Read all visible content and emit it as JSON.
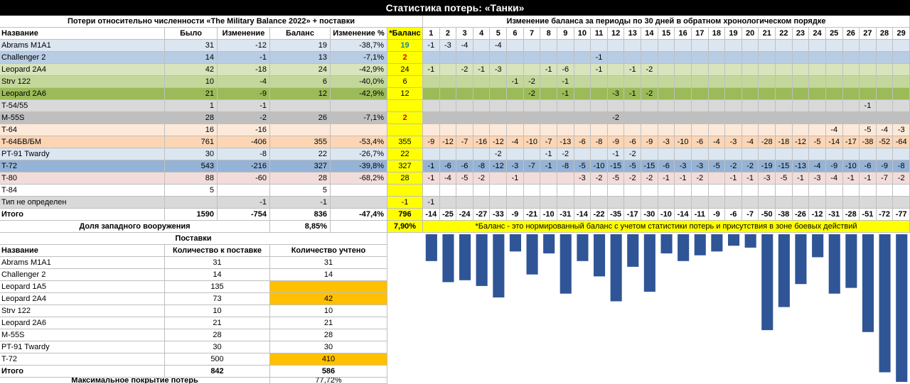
{
  "title": "Статистика потерь: «Танки»",
  "left_header": "Потери относительно численности «The Military Balance 2022» + поставки",
  "right_header": "Изменение баланса за периоды по 30 дней в обратном хронологическом порядке",
  "columns": [
    "Название",
    "Было",
    "Изменение",
    "Баланс",
    "Изменение %",
    "*Баланс"
  ],
  "periods": [
    "1",
    "2",
    "3",
    "4",
    "5",
    "6",
    "7",
    "8",
    "9",
    "10",
    "11",
    "12",
    "13",
    "14",
    "15",
    "16",
    "17",
    "18",
    "19",
    "20",
    "21",
    "22",
    "23",
    "24",
    "25",
    "26",
    "27",
    "28",
    "29"
  ],
  "colors": {
    "yellow": "#ffff00",
    "orange": "#ffc000",
    "bar": "#2f5597"
  },
  "rows": [
    {
      "name": "Abrams M1A1",
      "was": "31",
      "change": "-12",
      "balance": "19",
      "pct": "-38,7%",
      "nbal": "19",
      "nbal_style": "teal",
      "bg": "#dce6f1",
      "d": [
        "-1",
        "-3",
        "-4",
        "",
        "-4",
        "",
        "",
        "",
        "",
        "",
        "",
        "",
        "",
        "",
        "",
        "",
        "",
        "",
        "",
        "",
        "",
        "",
        "",
        "",
        "",
        "",
        "",
        "",
        ""
      ]
    },
    {
      "name": "Challenger 2",
      "was": "14",
      "change": "-1",
      "balance": "13",
      "pct": "-7,1%",
      "nbal": "2",
      "nbal_style": "red",
      "bg": "#b8cce4",
      "d": [
        "",
        "",
        "",
        "",
        "",
        "",
        "",
        "",
        "",
        "",
        "-1",
        "",
        "",
        "",
        "",
        "",
        "",
        "",
        "",
        "",
        "",
        "",
        "",
        "",
        "",
        "",
        "",
        "",
        ""
      ]
    },
    {
      "name": "Leopard 2A4",
      "was": "42",
      "change": "-18",
      "balance": "24",
      "pct": "-42,9%",
      "nbal": "24",
      "nbal_style": "",
      "bg": "#d8e4bc",
      "d": [
        "-1",
        "",
        "-2",
        "-1",
        "-3",
        "",
        "",
        "-1",
        "-6",
        "",
        "-1",
        "",
        "-1",
        "-2",
        "",
        "",
        "",
        "",
        "",
        "",
        "",
        "",
        "",
        "",
        "",
        "",
        "",
        "",
        ""
      ]
    },
    {
      "name": "Strv 122",
      "was": "10",
      "change": "-4",
      "balance": "6",
      "pct": "-40,0%",
      "nbal": "6",
      "nbal_style": "",
      "bg": "#c4d79b",
      "d": [
        "",
        "",
        "",
        "",
        "",
        "-1",
        "-2",
        "",
        "-1",
        "",
        "",
        "",
        "",
        "",
        "",
        "",
        "",
        "",
        "",
        "",
        "",
        "",
        "",
        "",
        "",
        "",
        "",
        "",
        ""
      ]
    },
    {
      "name": "Leopard 2A6",
      "was": "21",
      "change": "-9",
      "balance": "12",
      "pct": "-42,9%",
      "nbal": "12",
      "nbal_style": "",
      "bg": "#9bbb59",
      "d": [
        "",
        "",
        "",
        "",
        "",
        "",
        "-2",
        "",
        "-1",
        "",
        "",
        "-3",
        "-1",
        "-2",
        "",
        "",
        "",
        "",
        "",
        "",
        "",
        "",
        "",
        "",
        "",
        "",
        "",
        "",
        ""
      ]
    },
    {
      "name": "T-54/55",
      "was": "1",
      "change": "-1",
      "balance": "",
      "pct": "",
      "nbal": "",
      "nbal_style": "",
      "bg": "#d9d9d9",
      "d": [
        "",
        "",
        "",
        "",
        "",
        "",
        "",
        "",
        "",
        "",
        "",
        "",
        "",
        "",
        "",
        "",
        "",
        "",
        "",
        "",
        "",
        "",
        "",
        "",
        "",
        "",
        "-1",
        "",
        ""
      ]
    },
    {
      "name": "M-55S",
      "was": "28",
      "change": "-2",
      "balance": "26",
      "pct": "-7,1%",
      "nbal": "2",
      "nbal_style": "red",
      "bg": "#bfbfbf",
      "d": [
        "",
        "",
        "",
        "",
        "",
        "",
        "",
        "",
        "",
        "",
        "",
        "-2",
        "",
        "",
        "",
        "",
        "",
        "",
        "",
        "",
        "",
        "",
        "",
        "",
        "",
        "",
        "",
        "",
        ""
      ]
    },
    {
      "name": "T-64",
      "was": "16",
      "change": "-16",
      "balance": "",
      "pct": "",
      "nbal": "",
      "nbal_style": "",
      "bg": "#fde9d9",
      "d": [
        "",
        "",
        "",
        "",
        "",
        "",
        "",
        "",
        "",
        "",
        "",
        "",
        "",
        "",
        "",
        "",
        "",
        "",
        "",
        "",
        "",
        "",
        "",
        "",
        "-4",
        "",
        "-5",
        "-4",
        "-3"
      ]
    },
    {
      "name": "T-64БВ/БМ",
      "was": "761",
      "change": "-406",
      "balance": "355",
      "pct": "-53,4%",
      "nbal": "355",
      "nbal_style": "",
      "bg": "#fcd5b4",
      "d": [
        "-9",
        "-12",
        "-7",
        "-16",
        "-12",
        "-4",
        "-10",
        "-7",
        "-13",
        "-6",
        "-8",
        "-9",
        "-6",
        "-9",
        "-3",
        "-10",
        "-6",
        "-4",
        "-3",
        "-4",
        "-28",
        "-18",
        "-12",
        "-5",
        "-14",
        "-17",
        "-38",
        "-52",
        "-64"
      ]
    },
    {
      "name": "PT-91 Twardy",
      "was": "30",
      "change": "-8",
      "balance": "22",
      "pct": "-26,7%",
      "nbal": "22",
      "nbal_style": "",
      "bg": "#dce6f1",
      "d": [
        "",
        "",
        "",
        "",
        "-2",
        "",
        "",
        "-1",
        "-2",
        "",
        "",
        "-1",
        "-2",
        "",
        "",
        "",
        "",
        "",
        "",
        "",
        "",
        "",
        "",
        "",
        "",
        "",
        "",
        "",
        ""
      ]
    },
    {
      "name": "T-72",
      "was": "543",
      "change": "-216",
      "balance": "327",
      "pct": "-39,8%",
      "nbal": "327",
      "nbal_style": "",
      "bg": "#95b3d7",
      "d": [
        "-1",
        "-6",
        "-6",
        "-8",
        "-12",
        "-3",
        "-7",
        "-1",
        "-8",
        "-5",
        "-10",
        "-15",
        "-5",
        "-15",
        "-6",
        "-3",
        "-3",
        "-5",
        "-2",
        "-2",
        "-19",
        "-15",
        "-13",
        "-4",
        "-9",
        "-10",
        "-6",
        "-9",
        "-8"
      ]
    },
    {
      "name": "T-80",
      "was": "88",
      "change": "-60",
      "balance": "28",
      "pct": "-68,2%",
      "nbal": "28",
      "nbal_style": "",
      "bg": "#f2dcdb",
      "d": [
        "-1",
        "-4",
        "-5",
        "-2",
        "",
        "-1",
        "",
        "",
        "",
        "-3",
        "-2",
        "-5",
        "-2",
        "-2",
        "-1",
        "-1",
        "-2",
        "",
        "-1",
        "-1",
        "-3",
        "-5",
        "-1",
        "-3",
        "-4",
        "-1",
        "-1",
        "-7",
        "-2"
      ]
    },
    {
      "name": "T-84",
      "was": "5",
      "change": "",
      "balance": "5",
      "pct": "",
      "nbal": "",
      "nbal_style": "",
      "bg": "#ffffff",
      "d": [
        "",
        "",
        "",
        "",
        "",
        "",
        "",
        "",
        "",
        "",
        "",
        "",
        "",
        "",
        "",
        "",
        "",
        "",
        "",
        "",
        "",
        "",
        "",
        "",
        "",
        "",
        "",
        "",
        ""
      ]
    },
    {
      "name": "Тип не определен",
      "was": "",
      "change": "-1",
      "balance": "-1",
      "pct": "",
      "nbal": "-1",
      "nbal_style": "",
      "bg": "#d9d9d9",
      "d": [
        "-1",
        "",
        "",
        "",
        "",
        "",
        "",
        "",
        "",
        "",
        "",
        "",
        "",
        "",
        "",
        "",
        "",
        "",
        "",
        "",
        "",
        "",
        "",
        "",
        "",
        "",
        "",
        "",
        ""
      ]
    }
  ],
  "total": {
    "name": "Итого",
    "was": "1590",
    "change": "-754",
    "balance": "836",
    "pct": "-47,4%",
    "nbal": "796",
    "d": [
      "-14",
      "-25",
      "-24",
      "-27",
      "-33",
      "-9",
      "-21",
      "-10",
      "-31",
      "-14",
      "-22",
      "-35",
      "-17",
      "-30",
      "-10",
      "-14",
      "-11",
      "-9",
      "-6",
      "-7",
      "-50",
      "-38",
      "-26",
      "-12",
      "-31",
      "-28",
      "-51",
      "-72",
      "-77"
    ]
  },
  "western": {
    "label": "Доля западного вооружения",
    "value": "8,85%",
    "nvalue": "7,90%"
  },
  "note": "*Баланс - это нормированный баланс с учетом статистики потерь и присутствия в зоне боевых действий",
  "supplies": {
    "title": "Поставки",
    "columns": [
      "Название",
      "Количество к поставке",
      "Количество учтено"
    ],
    "rows": [
      {
        "name": "Abrams M1A1",
        "qty": "31",
        "counted": "31",
        "hl": false
      },
      {
        "name": "Challenger 2",
        "qty": "14",
        "counted": "14",
        "hl": false
      },
      {
        "name": "Leopard 1A5",
        "qty": "135",
        "counted": "",
        "hl": true
      },
      {
        "name": "Leopard 2A4",
        "qty": "73",
        "counted": "42",
        "hl": true
      },
      {
        "name": "Strv 122",
        "qty": "10",
        "counted": "10",
        "hl": false
      },
      {
        "name": "Leopard 2A6",
        "qty": "21",
        "counted": "21",
        "hl": false
      },
      {
        "name": "M-55S",
        "qty": "28",
        "counted": "28",
        "hl": false
      },
      {
        "name": "PT-91 Twardy",
        "qty": "30",
        "counted": "30",
        "hl": false
      },
      {
        "name": "T-72",
        "qty": "500",
        "counted": "410",
        "hl": true
      }
    ],
    "total": {
      "name": "Итого",
      "qty": "842",
      "counted": "586"
    },
    "coverage": {
      "label": "Максимальное покрытие потерь",
      "value": "77,72%"
    }
  },
  "chart_data": {
    "type": "bar",
    "categories": [
      "1",
      "2",
      "3",
      "4",
      "5",
      "6",
      "7",
      "8",
      "9",
      "10",
      "11",
      "12",
      "13",
      "14",
      "15",
      "16",
      "17",
      "18",
      "19",
      "20",
      "21",
      "22",
      "23",
      "24",
      "25",
      "26",
      "27",
      "28",
      "29"
    ],
    "values": [
      -14,
      -25,
      -24,
      -27,
      -33,
      -9,
      -21,
      -10,
      -31,
      -14,
      -22,
      -35,
      -17,
      -30,
      -10,
      -14,
      -11,
      -9,
      -6,
      -7,
      -50,
      -38,
      -26,
      -12,
      -31,
      -28,
      -51,
      -72,
      -77
    ],
    "ylim": [
      -77,
      0
    ],
    "grid": false
  }
}
